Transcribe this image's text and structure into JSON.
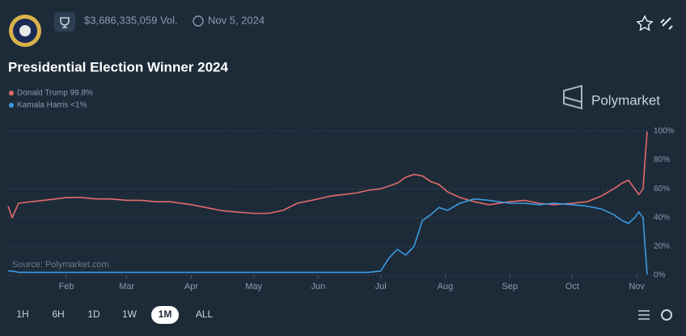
{
  "header": {
    "volume": "$3,686,335,059 Vol.",
    "date": "Nov 5, 2024",
    "brand": "Polymarket"
  },
  "range_buttons": [
    "1H",
    "6H",
    "1D",
    "1W",
    "1M",
    "ALL"
  ],
  "source": "Source: Polymarket.com",
  "chart_data": {
    "type": "line",
    "title": "Presidential Election Winner 2024",
    "x": [
      3,
      5,
      8,
      14,
      20,
      26,
      31,
      38,
      45,
      52,
      60,
      67,
      74,
      81,
      91,
      98,
      105,
      112,
      121,
      128,
      135,
      142,
      152,
      158,
      164,
      170,
      176,
      182,
      186,
      190,
      194,
      198,
      202,
      206,
      210,
      214,
      220,
      227,
      234,
      244,
      251,
      258,
      265,
      274,
      281,
      288,
      294,
      298,
      301,
      304,
      306,
      308,
      309,
      310
    ],
    "series": [
      {
        "name": "Donald Trump 99.8%",
        "color": "#e36a6a",
        "values": [
          48,
          40,
          50,
          51,
          52,
          53,
          54,
          54,
          53,
          53,
          52,
          52,
          51,
          51,
          49,
          47,
          45,
          44,
          43,
          43,
          45,
          50,
          53,
          55,
          56,
          57,
          59,
          60,
          62,
          64,
          68,
          70,
          69,
          65,
          63,
          58,
          54,
          51,
          49,
          51,
          52,
          50,
          49,
          50,
          51,
          55,
          60,
          64,
          66,
          60,
          56,
          60,
          80,
          99.8
        ]
      },
      {
        "name": "Kamala Harris <1%",
        "color": "#3d9ae0",
        "values": [
          3,
          3,
          2,
          2,
          2,
          2,
          2,
          2,
          2,
          2,
          2,
          2,
          2,
          2,
          2,
          2,
          2,
          2,
          2,
          2,
          2,
          2,
          2,
          2,
          2,
          2,
          2,
          3,
          12,
          18,
          14,
          20,
          38,
          42,
          47,
          45,
          50,
          53,
          52,
          50,
          50,
          49,
          50,
          49,
          48,
          46,
          42,
          38,
          36,
          40,
          44,
          40,
          20,
          0.5
        ]
      }
    ],
    "xlim": [
      3,
      310
    ],
    "xticks": [
      {
        "value": 31,
        "label": "Feb"
      },
      {
        "value": 60,
        "label": "Mar"
      },
      {
        "value": 91,
        "label": "Apr"
      },
      {
        "value": 121,
        "label": "May"
      },
      {
        "value": 152,
        "label": "Jun"
      },
      {
        "value": 182,
        "label": "Jul"
      },
      {
        "value": 213,
        "label": "Aug"
      },
      {
        "value": 244,
        "label": "Sep"
      },
      {
        "value": 274,
        "label": "Oct"
      },
      {
        "value": 305,
        "label": "Nov"
      }
    ],
    "ylim": [
      0,
      100
    ],
    "yticks": [
      {
        "value": 0,
        "label": "0%"
      },
      {
        "value": 20,
        "label": "20%"
      },
      {
        "value": 40,
        "label": "40%"
      },
      {
        "value": 60,
        "label": "60%"
      },
      {
        "value": 80,
        "label": "80%"
      },
      {
        "value": 100,
        "label": "100%"
      }
    ],
    "grid": true,
    "legend": "top-left"
  }
}
